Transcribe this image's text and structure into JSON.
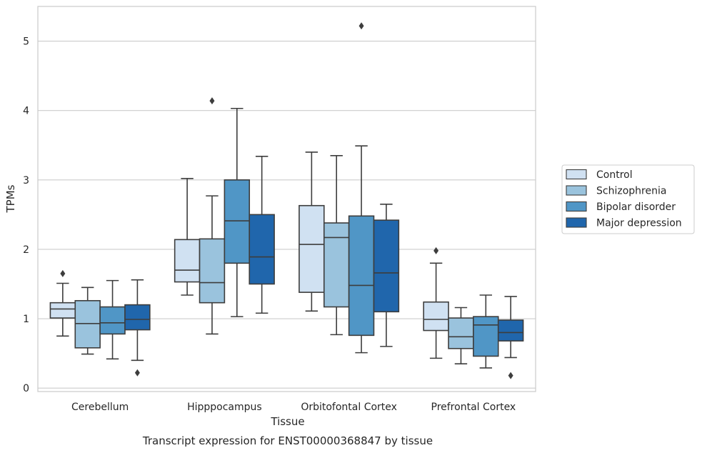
{
  "chart_data": {
    "type": "boxplot",
    "title": "",
    "caption": "Transcript expression for ENST00000368847 by tissue",
    "xlabel": "Tissue",
    "ylabel": "TPMs",
    "ylim": [
      -0.05,
      5.5
    ],
    "yticks": [
      "0",
      "1",
      "2",
      "3",
      "4",
      "5"
    ],
    "grid": "horizontal",
    "legend_position": "right",
    "categories": [
      "Cerebellum",
      "Hipppocampus",
      "Orbitofontal Cortex",
      "Prefrontal Cortex"
    ],
    "series": [
      {
        "name": "Control",
        "color": "#d0e1f2",
        "boxes": [
          {
            "whisker_low": 0.75,
            "q1": 1.01,
            "median": 1.14,
            "q3": 1.23,
            "whisker_high": 1.51,
            "outliers": [
              1.65
            ]
          },
          {
            "whisker_low": 1.34,
            "q1": 1.53,
            "median": 1.7,
            "q3": 2.14,
            "whisker_high": 3.02,
            "outliers": []
          },
          {
            "whisker_low": 1.11,
            "q1": 1.38,
            "median": 2.07,
            "q3": 2.63,
            "whisker_high": 3.4,
            "outliers": []
          },
          {
            "whisker_low": 0.43,
            "q1": 0.83,
            "median": 0.99,
            "q3": 1.24,
            "whisker_high": 1.8,
            "outliers": [
              1.98
            ]
          }
        ]
      },
      {
        "name": "Schizophrenia",
        "color": "#9ac3dd",
        "boxes": [
          {
            "whisker_low": 0.49,
            "q1": 0.58,
            "median": 0.93,
            "q3": 1.26,
            "whisker_high": 1.45,
            "outliers": []
          },
          {
            "whisker_low": 0.78,
            "q1": 1.23,
            "median": 1.52,
            "q3": 2.15,
            "whisker_high": 2.77,
            "outliers": [
              4.14
            ]
          },
          {
            "whisker_low": 0.77,
            "q1": 1.17,
            "median": 2.17,
            "q3": 2.38,
            "whisker_high": 3.35,
            "outliers": []
          },
          {
            "whisker_low": 0.35,
            "q1": 0.57,
            "median": 0.74,
            "q3": 1.01,
            "whisker_high": 1.16,
            "outliers": []
          }
        ]
      },
      {
        "name": "Bipolar disorder",
        "color": "#5096c6",
        "boxes": [
          {
            "whisker_low": 0.42,
            "q1": 0.78,
            "median": 0.94,
            "q3": 1.17,
            "whisker_high": 1.55,
            "outliers": []
          },
          {
            "whisker_low": 1.03,
            "q1": 1.8,
            "median": 2.41,
            "q3": 3.0,
            "whisker_high": 4.03,
            "outliers": []
          },
          {
            "whisker_low": 0.51,
            "q1": 0.76,
            "median": 1.48,
            "q3": 2.48,
            "whisker_high": 3.49,
            "outliers": [
              5.22
            ]
          },
          {
            "whisker_low": 0.29,
            "q1": 0.46,
            "median": 0.91,
            "q3": 1.03,
            "whisker_high": 1.34,
            "outliers": []
          }
        ]
      },
      {
        "name": "Major depression",
        "color": "#2066ac",
        "boxes": [
          {
            "whisker_low": 0.4,
            "q1": 0.84,
            "median": 0.99,
            "q3": 1.2,
            "whisker_high": 1.56,
            "outliers": [
              0.22
            ]
          },
          {
            "whisker_low": 1.08,
            "q1": 1.5,
            "median": 1.89,
            "q3": 2.5,
            "whisker_high": 3.34,
            "outliers": []
          },
          {
            "whisker_low": 0.6,
            "q1": 1.1,
            "median": 1.66,
            "q3": 2.42,
            "whisker_high": 2.65,
            "outliers": []
          },
          {
            "whisker_low": 0.44,
            "q1": 0.68,
            "median": 0.8,
            "q3": 0.98,
            "whisker_high": 1.32,
            "outliers": [
              0.18
            ]
          }
        ]
      }
    ]
  }
}
